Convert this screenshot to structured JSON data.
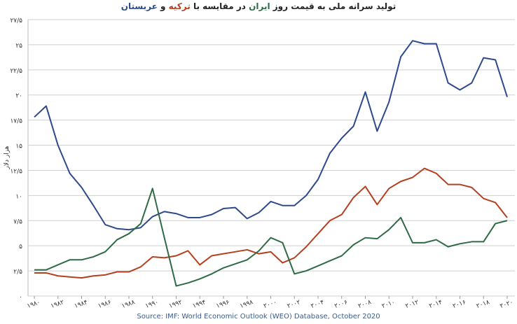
{
  "chart_data": {
    "type": "line",
    "title_parts": [
      {
        "text": "تولید سرانه ملی به قیمت روز ",
        "color": "#222222"
      },
      {
        "text": "ایران",
        "color": "#2e6b45"
      },
      {
        "text": " در مقایسه با ",
        "color": "#222222"
      },
      {
        "text": "ترکیه",
        "color": "#b5401f"
      },
      {
        "text": " و ",
        "color": "#222222"
      },
      {
        "text": "عربستان",
        "color": "#2e4a8c"
      }
    ],
    "y_label": "هزار دلار",
    "source": "Source: IMF: World Economic Outlook (WEO) Database, October 2020",
    "x": [
      1980,
      1981,
      1982,
      1983,
      1984,
      1985,
      1986,
      1987,
      1988,
      1989,
      1990,
      1991,
      1992,
      1993,
      1994,
      1995,
      1996,
      1997,
      1998,
      1999,
      2000,
      2001,
      2002,
      2003,
      2004,
      2005,
      2006,
      2007,
      2008,
      2009,
      2010,
      2011,
      2012,
      2013,
      2014,
      2015,
      2016,
      2017,
      2018,
      2019,
      2020
    ],
    "series": [
      {
        "color": "#2e4a8c",
        "values": [
          17.8,
          18.9,
          15.0,
          12.2,
          10.8,
          9.0,
          7.1,
          6.7,
          6.6,
          6.8,
          7.9,
          8.4,
          8.2,
          7.8,
          7.8,
          8.1,
          8.7,
          8.8,
          7.7,
          8.3,
          9.4,
          9.0,
          9.0,
          10.0,
          11.6,
          14.2,
          15.7,
          16.9,
          20.3,
          16.4,
          19.3,
          23.8,
          25.4,
          25.1,
          25.1,
          21.2,
          20.5,
          21.2,
          23.7,
          23.5,
          19.8
        ]
      },
      {
        "color": "#b5401f",
        "values": [
          2.3,
          2.3,
          2.0,
          1.9,
          1.8,
          2.0,
          2.1,
          2.4,
          2.4,
          2.9,
          3.9,
          3.8,
          4.0,
          4.5,
          3.1,
          4.0,
          4.2,
          4.4,
          4.6,
          4.2,
          4.4,
          3.3,
          3.8,
          4.9,
          6.2,
          7.5,
          8.1,
          9.8,
          10.9,
          9.1,
          10.7,
          11.4,
          11.8,
          12.7,
          12.2,
          11.1,
          11.1,
          10.8,
          9.7,
          9.3,
          7.8
        ]
      },
      {
        "color": "#2e6b45",
        "values": [
          2.6,
          2.6,
          3.1,
          3.6,
          3.6,
          3.9,
          4.4,
          5.6,
          6.2,
          7.2,
          10.7,
          5.8,
          1.0,
          1.3,
          1.7,
          2.2,
          2.8,
          3.2,
          3.6,
          4.5,
          5.8,
          5.3,
          2.2,
          2.5,
          3.0,
          3.5,
          4.0,
          5.1,
          5.8,
          5.7,
          6.6,
          7.8,
          5.3,
          5.3,
          5.6,
          4.9,
          5.2,
          5.4,
          5.4,
          7.2,
          7.5
        ]
      }
    ],
    "xlim": [
      1980,
      2020
    ],
    "xticks": [
      {
        "value": 1980,
        "label": "۱۹۸۰"
      },
      {
        "value": 1982,
        "label": "۱۹۸۲"
      },
      {
        "value": 1984,
        "label": "۱۹۸۴"
      },
      {
        "value": 1986,
        "label": "۱۹۸۶"
      },
      {
        "value": 1988,
        "label": "۱۹۸۸"
      },
      {
        "value": 1990,
        "label": "۱۹۹۰"
      },
      {
        "value": 1992,
        "label": "۱۹۹۲"
      },
      {
        "value": 1994,
        "label": "۱۹۹۴"
      },
      {
        "value": 1996,
        "label": "۱۹۹۶"
      },
      {
        "value": 1998,
        "label": "۱۹۹۸"
      },
      {
        "value": 2000,
        "label": "۲۰۰۰"
      },
      {
        "value": 2002,
        "label": "۲۰۰۲"
      },
      {
        "value": 2004,
        "label": "۲۰۰۴"
      },
      {
        "value": 2006,
        "label": "۲۰۰۶"
      },
      {
        "value": 2008,
        "label": "۲۰۰۸"
      },
      {
        "value": 2010,
        "label": "۲۰۱۰"
      },
      {
        "value": 2012,
        "label": "۲۰۱۲"
      },
      {
        "value": 2014,
        "label": "۲۰۱۴"
      },
      {
        "value": 2016,
        "label": "۲۰۱۶"
      },
      {
        "value": 2018,
        "label": "۲۰۱۸"
      },
      {
        "value": 2020,
        "label": "۲۰۲۰"
      }
    ],
    "ylim": [
      0,
      27.5
    ],
    "yticks": [
      {
        "value": 0,
        "label": "۰"
      },
      {
        "value": 2.5,
        "label": "۲/۵"
      },
      {
        "value": 5,
        "label": "۵"
      },
      {
        "value": 7.5,
        "label": "۷/۵"
      },
      {
        "value": 10,
        "label": "۱۰"
      },
      {
        "value": 12.5,
        "label": "۱۲/۵"
      },
      {
        "value": 15,
        "label": "۱۵"
      },
      {
        "value": 17.5,
        "label": "۱۷/۵"
      },
      {
        "value": 20,
        "label": "۲۰"
      },
      {
        "value": 22.5,
        "label": "۲۲/۵"
      },
      {
        "value": 25,
        "label": "۲۵"
      },
      {
        "value": 27.5,
        "label": "۲۷/۵"
      }
    ],
    "grid": true
  }
}
